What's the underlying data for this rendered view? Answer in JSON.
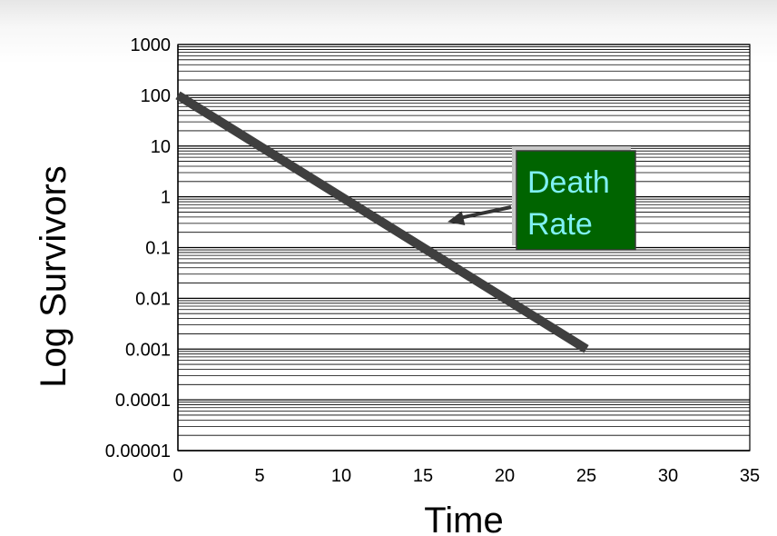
{
  "chart_data": {
    "type": "line",
    "xlabel": "Time",
    "ylabel": "Log Survivors",
    "xlim": [
      0,
      35
    ],
    "ylim": [
      1e-05,
      1000
    ],
    "y_scale": "log",
    "x_ticks": [
      "0",
      "5",
      "10",
      "15",
      "20",
      "25",
      "30",
      "35"
    ],
    "x_tick_values": [
      0,
      5,
      10,
      15,
      20,
      25,
      30,
      35
    ],
    "y_ticks": [
      "1000",
      "100",
      "10",
      "1",
      "0.1",
      "0.01",
      "0.001",
      "0.0001",
      "0.00001"
    ],
    "y_tick_values": [
      1000,
      100,
      10,
      1,
      0.1,
      0.01,
      0.001,
      0.0001,
      1e-05
    ],
    "grid": true,
    "series": [
      {
        "x": [
          0,
          25
        ],
        "y": [
          100,
          0.001
        ],
        "color": "#3f3f3f"
      }
    ],
    "annotation": {
      "lines": [
        "Death",
        "Rate"
      ],
      "box_color": "#006400",
      "text_color": "#7ff0f4",
      "arrow_target": {
        "x": 16.5,
        "y": 0.32
      }
    }
  }
}
